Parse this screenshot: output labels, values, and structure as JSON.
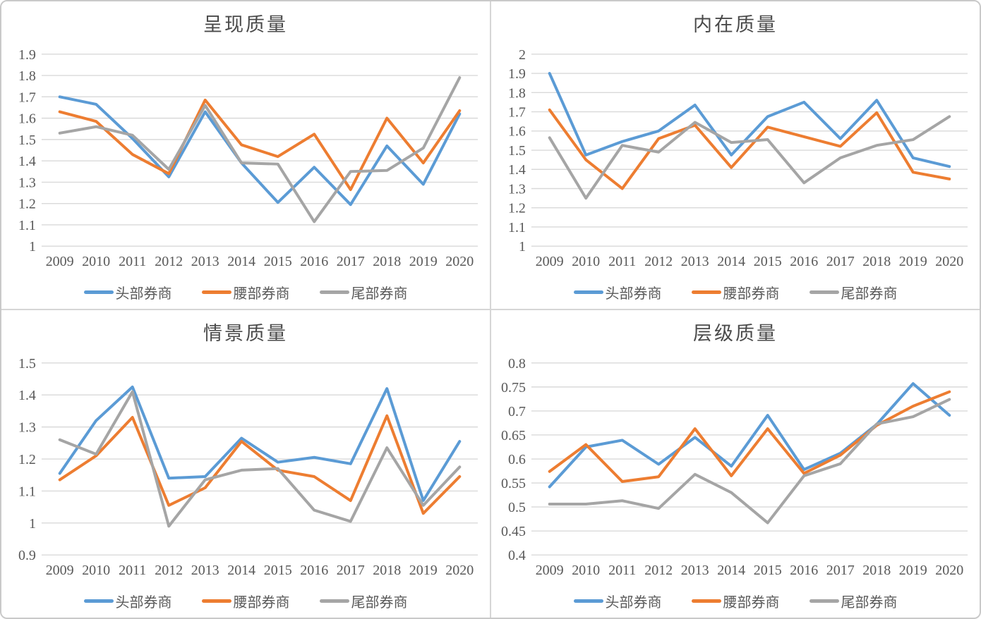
{
  "colors": {
    "blue": "#5B9BD5",
    "orange": "#ED7D31",
    "gray": "#A5A5A5",
    "gridline": "#D9D9D9",
    "axis_text": "#595959",
    "title_text": "#4a4a4a",
    "divider": "#d6d6d6",
    "background": "#ffffff"
  },
  "chart_data": [
    {
      "type": "line",
      "title": "呈现质量",
      "categories": [
        "2009",
        "2010",
        "2011",
        "2012",
        "2013",
        "2014",
        "2015",
        "2016",
        "2017",
        "2018",
        "2019",
        "2020"
      ],
      "ylim": [
        1,
        1.9
      ],
      "ystep": 0.1,
      "grid": true,
      "legend_position": "bottom",
      "series": [
        {
          "key": "head-brokers",
          "name": "头部券商",
          "color": "#5B9BD5",
          "values": [
            1.7,
            1.665,
            1.505,
            1.325,
            1.63,
            1.39,
            1.205,
            1.37,
            1.195,
            1.47,
            1.29,
            1.62
          ]
        },
        {
          "key": "mid-brokers",
          "name": "腰部券商",
          "color": "#ED7D31",
          "values": [
            1.63,
            1.585,
            1.43,
            1.34,
            1.685,
            1.475,
            1.42,
            1.525,
            1.265,
            1.6,
            1.39,
            1.635
          ]
        },
        {
          "key": "tail-brokers",
          "name": "尾部券商",
          "color": "#A5A5A5",
          "values": [
            1.53,
            1.56,
            1.52,
            1.36,
            1.66,
            1.39,
            1.385,
            1.115,
            1.35,
            1.355,
            1.46,
            1.79
          ]
        }
      ]
    },
    {
      "type": "line",
      "title": "内在质量",
      "categories": [
        "2009",
        "2010",
        "2011",
        "2012",
        "2013",
        "2014",
        "2015",
        "2016",
        "2017",
        "2018",
        "2019",
        "2020"
      ],
      "ylim": [
        1,
        2
      ],
      "ystep": 0.1,
      "grid": true,
      "legend_position": "bottom",
      "series": [
        {
          "key": "head-brokers",
          "name": "头部券商",
          "color": "#5B9BD5",
          "values": [
            1.9,
            1.475,
            1.545,
            1.6,
            1.735,
            1.475,
            1.675,
            1.75,
            1.56,
            1.76,
            1.46,
            1.415
          ]
        },
        {
          "key": "mid-brokers",
          "name": "腰部券商",
          "color": "#ED7D31",
          "values": [
            1.71,
            1.45,
            1.3,
            1.56,
            1.63,
            1.41,
            1.62,
            1.57,
            1.52,
            1.695,
            1.385,
            1.35
          ]
        },
        {
          "key": "tail-brokers",
          "name": "尾部券商",
          "color": "#A5A5A5",
          "values": [
            1.565,
            1.25,
            1.525,
            1.49,
            1.645,
            1.54,
            1.555,
            1.33,
            1.46,
            1.525,
            1.555,
            1.675
          ]
        }
      ]
    },
    {
      "type": "line",
      "title": "情景质量",
      "categories": [
        "2009",
        "2010",
        "2011",
        "2012",
        "2013",
        "2014",
        "2015",
        "2016",
        "2017",
        "2018",
        "2019",
        "2020"
      ],
      "ylim": [
        0.9,
        1.5
      ],
      "ystep": 0.1,
      "grid": true,
      "legend_position": "bottom",
      "series": [
        {
          "key": "head-brokers",
          "name": "头部券商",
          "color": "#5B9BD5",
          "values": [
            1.155,
            1.32,
            1.425,
            1.14,
            1.145,
            1.265,
            1.19,
            1.205,
            1.185,
            1.42,
            1.07,
            1.255
          ]
        },
        {
          "key": "mid-brokers",
          "name": "腰部券商",
          "color": "#ED7D31",
          "values": [
            1.135,
            1.21,
            1.33,
            1.055,
            1.11,
            1.255,
            1.165,
            1.145,
            1.07,
            1.335,
            1.03,
            1.145
          ]
        },
        {
          "key": "tail-brokers",
          "name": "尾部券商",
          "color": "#A5A5A5",
          "values": [
            1.26,
            1.215,
            1.41,
            0.99,
            1.135,
            1.165,
            1.17,
            1.04,
            1.005,
            1.235,
            1.055,
            1.175
          ]
        }
      ]
    },
    {
      "type": "line",
      "title": "层级质量",
      "categories": [
        "2009",
        "2010",
        "2011",
        "2012",
        "2013",
        "2014",
        "2015",
        "2016",
        "2017",
        "2018",
        "2019",
        "2020"
      ],
      "ylim": [
        0.4,
        0.8
      ],
      "ystep": 0.05,
      "grid": true,
      "legend_position": "bottom",
      "series": [
        {
          "key": "head-brokers",
          "name": "头部券商",
          "color": "#5B9BD5",
          "values": [
            0.542,
            0.625,
            0.639,
            0.589,
            0.645,
            0.585,
            0.691,
            0.578,
            0.612,
            0.672,
            0.757,
            0.691
          ]
        },
        {
          "key": "mid-brokers",
          "name": "腰部券商",
          "color": "#ED7D31",
          "values": [
            0.574,
            0.63,
            0.553,
            0.563,
            0.663,
            0.565,
            0.663,
            0.57,
            0.608,
            0.67,
            0.71,
            0.74
          ]
        },
        {
          "key": "tail-brokers",
          "name": "尾部券商",
          "color": "#A5A5A5",
          "values": [
            0.506,
            0.506,
            0.513,
            0.497,
            0.568,
            0.53,
            0.467,
            0.565,
            0.59,
            0.673,
            0.688,
            0.724
          ]
        }
      ]
    }
  ]
}
